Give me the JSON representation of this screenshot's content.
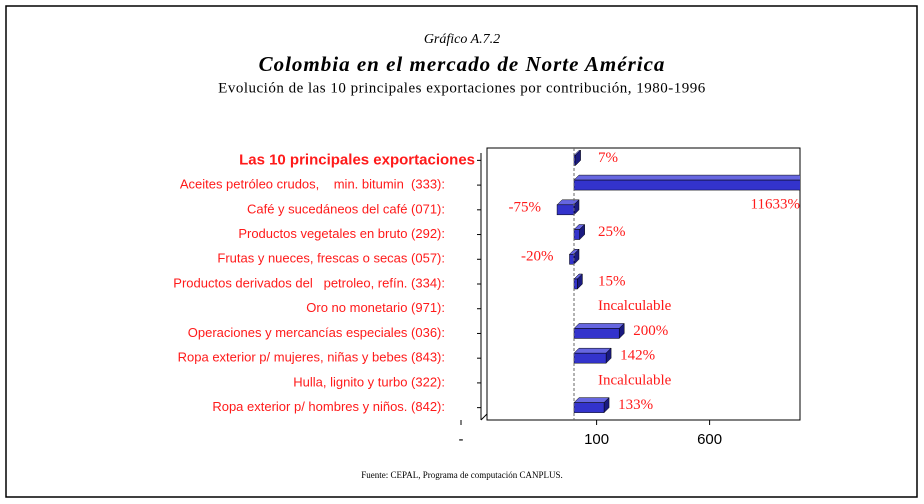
{
  "chart_data": {
    "type": "bar3d",
    "label": "Gráfico A.7.2",
    "title": "Colombia en el mercado de Norte América",
    "subtitle": "Evolución de las 10 principales exportaciones por contribución, 1980-1996",
    "source": "Fuente: CEPAL, Programa de computación CANPLUS.",
    "categories": [
      "Las 10 principales exportaciones",
      "Aceites petróleo crudos,    min. bitumin  (333):",
      "Café y sucedáneos del café (071):",
      "Productos vegetales en bruto (292):",
      "Frutas y nueces, frescas o secas (057):",
      "Productos derivados del   petroleo, refín. (334):",
      "Oro no monetario (971):",
      "Operaciones y mercancías especiales (036):",
      "Ropa exterior p/ mujeres, niñas y bebes (843):",
      "Hulla, lignito y turbo (322):",
      "Ropa exterior p/ hombres y niños. (842):"
    ],
    "values": [
      7,
      11633,
      -75,
      25,
      -20,
      15,
      null,
      200,
      142,
      null,
      133
    ],
    "value_labels": [
      "7%",
      "11633%",
      "-75%",
      "25%",
      "-20%",
      "15%",
      "Incalculable",
      "200%",
      "142%",
      "Incalculable",
      "133%"
    ],
    "color": "#3333cc",
    "xlim": [
      -385,
      1000
    ],
    "xticks": [
      {
        "value": -500,
        "label": "-"
      },
      100,
      600
    ]
  }
}
